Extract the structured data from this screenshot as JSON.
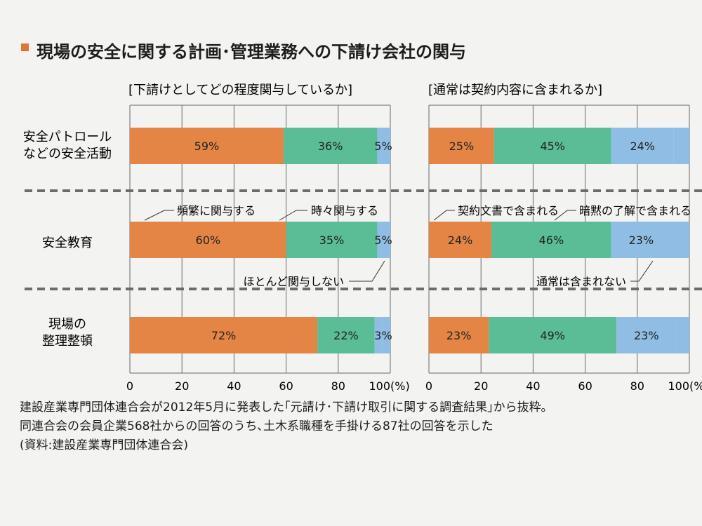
{
  "title": "現場の安全に関する計画･管理業務への下請け会社の関与",
  "colors": {
    "accent": "#e07436",
    "orange": "#e48545",
    "green": "#5bbd96",
    "blue": "#8fbde3",
    "grid": "#6a6a6a"
  },
  "chart_data": [
    {
      "type": "bar",
      "stacked": true,
      "orientation": "horizontal",
      "title": "[下請けとしてどの程度関与しているか]",
      "categories": [
        "安全パトロール\nなどの安全活動",
        "安全教育",
        "現場の\n整理整頓"
      ],
      "series": [
        {
          "name": "頻繁に関与する",
          "values": [
            59,
            60,
            72
          ],
          "labels": [
            "59%",
            "60%",
            "72%"
          ]
        },
        {
          "name": "時々関与する",
          "values": [
            36,
            35,
            22
          ],
          "labels": [
            "36%",
            "35%",
            "22%"
          ]
        },
        {
          "name": "ほとんど関与しない",
          "values": [
            5,
            5,
            3
          ],
          "labels": [
            "5%",
            "5%",
            "3%"
          ]
        }
      ],
      "xlim": [
        0,
        100
      ],
      "ticks": [
        "0",
        "20",
        "40",
        "60",
        "80",
        "100"
      ],
      "unit": "(%)",
      "grid": true
    },
    {
      "type": "bar",
      "stacked": true,
      "orientation": "horizontal",
      "title": "[通常は契約内容に含まれるか]",
      "categories": [
        "安全パトロール\nなどの安全活動",
        "安全教育",
        "現場の\n整理整頓"
      ],
      "series": [
        {
          "name": "契約文書で含まれる",
          "values": [
            25,
            24,
            23
          ],
          "labels": [
            "25%",
            "24%",
            "23%"
          ]
        },
        {
          "name": "暗黙の了解で含まれる",
          "values": [
            45,
            46,
            49
          ],
          "labels": [
            "45%",
            "46%",
            "49%"
          ]
        },
        {
          "name": "通常は含まれない",
          "values": [
            24,
            23,
            23
          ],
          "labels": [
            "24%",
            "23%",
            "23%"
          ]
        }
      ],
      "xlim": [
        0,
        100
      ],
      "ticks": [
        "0",
        "20",
        "40",
        "60",
        "80",
        "100"
      ],
      "unit": "(%)",
      "grid": true
    }
  ],
  "notes": [
    "建設産業専門団体連合会が2012年5月に発表した｢元請け･下請け取引に関する調査結果｣から抜粋｡",
    "同連合会の会員企業568社からの回答のうち､土木系職種を手掛ける87社の回答を示した",
    "(資料:建設産業専門団体連合会)"
  ]
}
